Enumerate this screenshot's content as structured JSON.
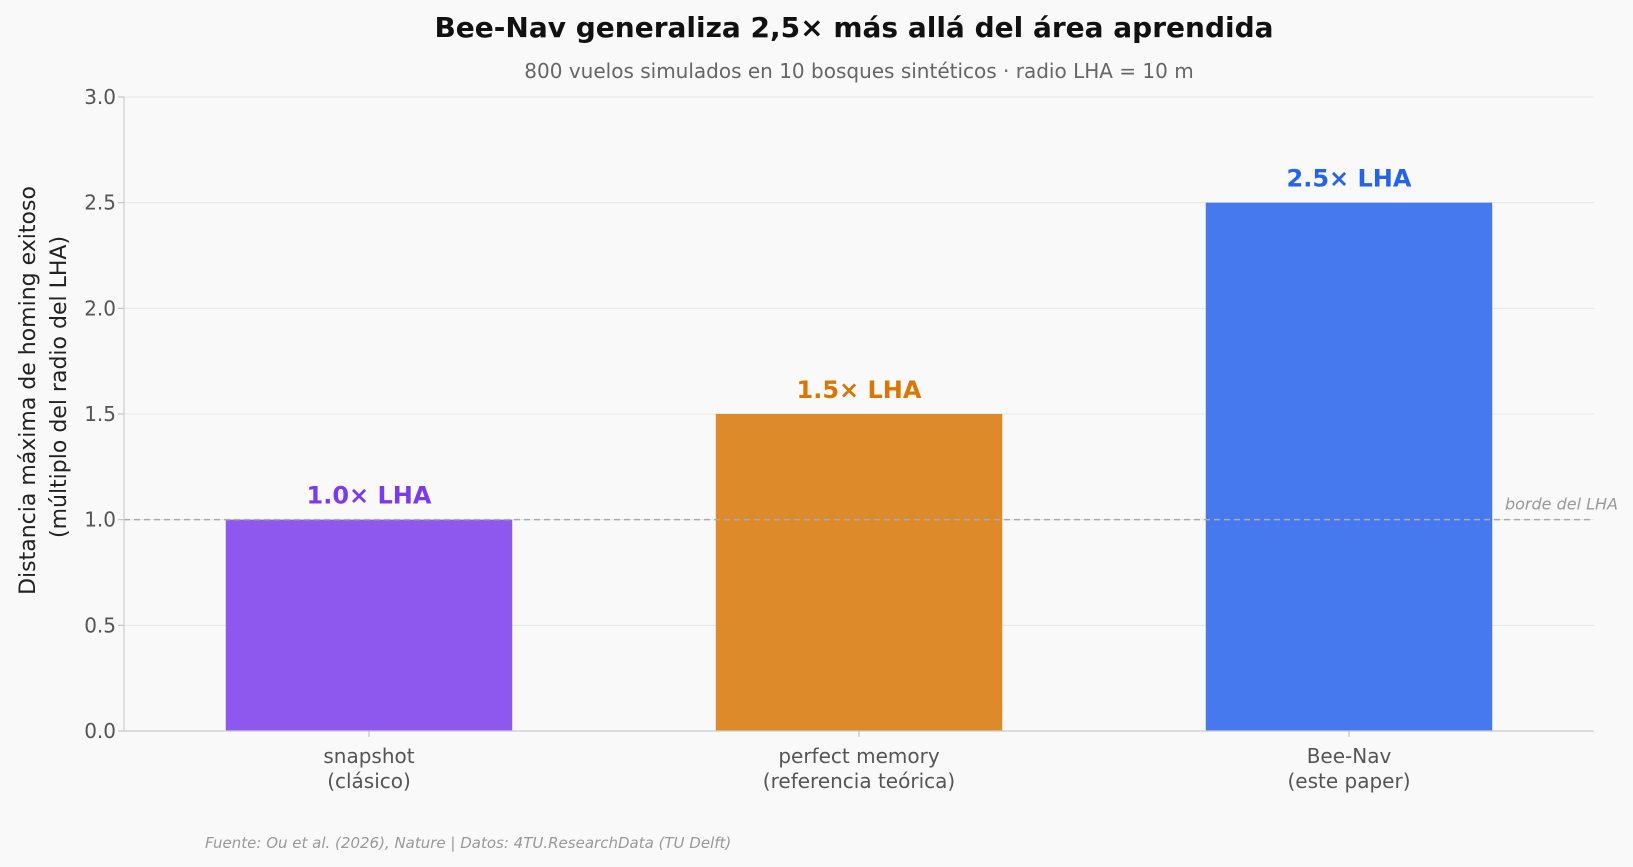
{
  "chart_data": {
    "type": "bar",
    "title": "Bee-Nav generaliza 2,5× más allá del área aprendida",
    "subtitle": "800 vuelos simulados en 10 bosques sintéticos · radio LHA = 10 m",
    "ylabel": [
      "Distancia máxima de homing exitoso",
      "(múltiplo del radio del LHA)"
    ],
    "xlabel": "",
    "ylim": [
      0,
      3.0
    ],
    "yticks": [
      "0.0",
      "0.5",
      "1.0",
      "1.5",
      "2.0",
      "2.5",
      "3.0"
    ],
    "grid": "horizontal",
    "categories": [
      [
        "snapshot",
        "(clásico)"
      ],
      [
        "perfect memory",
        "(referencia teórica)"
      ],
      [
        "Bee-Nav",
        "(este paper)"
      ]
    ],
    "values": [
      1.0,
      1.5,
      2.5
    ],
    "value_labels": [
      "1.0× LHA",
      "1.5× LHA",
      "2.5× LHA"
    ],
    "bar_colors": [
      "#8e57ee",
      "#dd8a2b",
      "#4779ee"
    ],
    "label_colors": [
      "#7c3aed",
      "#d97706",
      "#2563eb"
    ],
    "reference_line": {
      "value": 1.0,
      "label": "borde del LHA",
      "color": "#aaaaaa"
    },
    "source": "Fuente: Ou et al. (2026), Nature | Datos: 4TU.ResearchData (TU Delft)"
  }
}
